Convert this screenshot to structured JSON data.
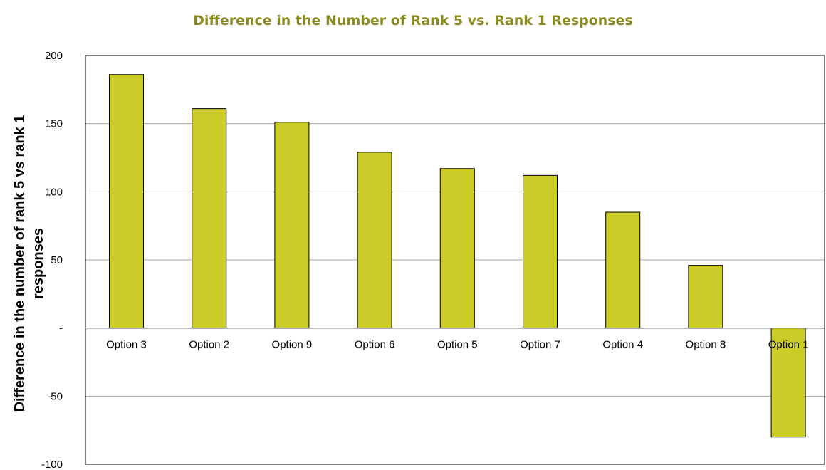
{
  "chart_data": {
    "type": "bar",
    "title": "Difference in the Number of Rank 5 vs. Rank 1 Responses",
    "ylabel": "Difference in the number of rank 5 vs rank 1 responses",
    "xlabel": "",
    "categories": [
      "Option 3",
      "Option 2",
      "Option 9",
      "Option 6",
      "Option 5",
      "Option 7",
      "Option 4",
      "Option 8",
      "Option 1"
    ],
    "values": [
      186,
      161,
      151,
      129,
      117,
      112,
      85,
      46,
      -80
    ],
    "ylim": [
      -100,
      200
    ],
    "yticks": [
      -100,
      -50,
      0,
      50,
      100,
      150,
      200
    ],
    "ytick_labels": [
      "-100",
      "-50",
      "-",
      "50",
      "100",
      "150",
      "200"
    ],
    "grid": true,
    "legend": "none",
    "bar_color": "#cccc29",
    "title_color": "#8a8a1e"
  }
}
